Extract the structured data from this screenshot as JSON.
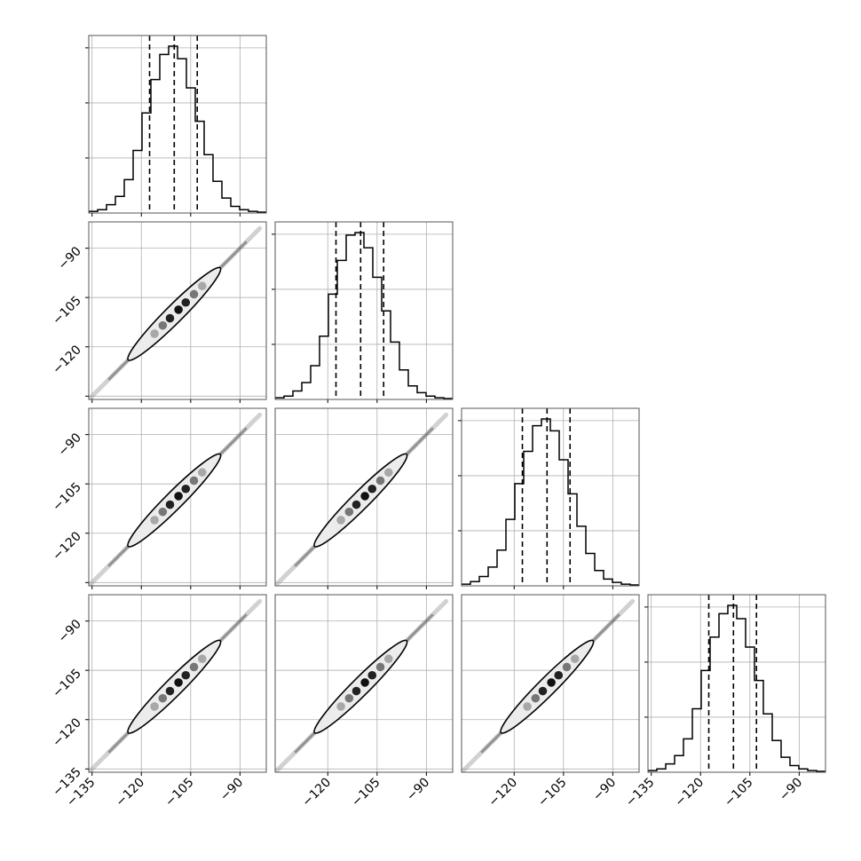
{
  "chart_data": {
    "type": "corner",
    "n_params": 4,
    "grid": true,
    "axes": [
      {
        "ticks": [
          -135,
          -120,
          -105,
          -90
        ],
        "tick_labels": [
          "−135",
          "−120",
          "−105",
          "−90"
        ],
        "lim": [
          -136,
          -82
        ]
      },
      {
        "ticks": [
          -120,
          -105,
          -90
        ],
        "tick_labels": [
          "−120",
          "−105",
          "−90"
        ],
        "lim": [
          -136,
          -82
        ]
      },
      {
        "ticks": [
          -120,
          -105,
          -90
        ],
        "tick_labels": [
          "−120",
          "−105",
          "−90"
        ],
        "lim": [
          -136,
          -82
        ]
      },
      {
        "ticks": [
          -135,
          -120,
          -105,
          -90
        ],
        "tick_labels": [
          "−135",
          "−120",
          "−105",
          "−90"
        ],
        "lim": [
          -136,
          -82
        ]
      }
    ],
    "row_axis_ticks": [
      -90,
      -105,
      -120,
      -135
    ],
    "row_axis_tick_labels": [
      "−90",
      "−105",
      "−120",
      "−135"
    ],
    "quantiles": [
      -117.5,
      -110.0,
      -103.0
    ],
    "histograms": [
      {
        "bin_edges": [
          -136,
          -133.3,
          -130.6,
          -127.9,
          -125.2,
          -122.5,
          -119.8,
          -117.1,
          -114.4,
          -111.7,
          -109,
          -106.3,
          -103.6,
          -100.9,
          -98.2,
          -95.5,
          -92.8,
          -90.1,
          -87.4,
          -84.7,
          -82
        ],
        "counts": [
          2,
          4,
          10,
          20,
          40,
          75,
          120,
          160,
          190,
          200,
          185,
          150,
          110,
          70,
          38,
          18,
          8,
          4,
          2,
          1
        ]
      },
      {
        "bin_edges": [
          -136,
          -133.3,
          -130.6,
          -127.9,
          -125.2,
          -122.5,
          -119.8,
          -117.1,
          -114.4,
          -111.7,
          -109,
          -106.3,
          -103.6,
          -100.9,
          -98.2,
          -95.5,
          -92.8,
          -90.1,
          -87.4,
          -84.7,
          -82
        ],
        "counts": [
          2,
          4,
          10,
          20,
          40,
          75,
          125,
          165,
          195,
          198,
          180,
          145,
          105,
          68,
          35,
          16,
          8,
          4,
          2,
          1
        ]
      },
      {
        "bin_edges": [
          -136,
          -133.3,
          -130.6,
          -127.9,
          -125.2,
          -122.5,
          -119.8,
          -117.1,
          -114.4,
          -111.7,
          -109,
          -106.3,
          -103.6,
          -100.9,
          -98.2,
          -95.5,
          -92.8,
          -90.1,
          -87.4,
          -84.7,
          -82
        ],
        "counts": [
          2,
          5,
          11,
          22,
          42,
          78,
          120,
          158,
          188,
          196,
          182,
          148,
          108,
          70,
          38,
          18,
          8,
          4,
          2,
          1
        ]
      },
      {
        "bin_edges": [
          -136,
          -133.3,
          -130.6,
          -127.9,
          -125.2,
          -122.5,
          -119.8,
          -117.1,
          -114.4,
          -111.7,
          -109,
          -106.3,
          -103.6,
          -100.9,
          -98.2,
          -95.5,
          -92.8,
          -90.1,
          -87.4,
          -84.7,
          -82
        ],
        "counts": [
          2,
          4,
          10,
          20,
          40,
          76,
          122,
          162,
          190,
          200,
          184,
          150,
          110,
          70,
          38,
          18,
          8,
          4,
          2,
          1
        ]
      }
    ],
    "joint": {
      "center": [
        -110,
        -110
      ],
      "ellipse_halfwidth": 14,
      "ellipse_halfthickness": 1.9,
      "blobs": [
        {
          "t": -6.0,
          "gray": "#a8a8a8"
        },
        {
          "t": -3.5,
          "gray": "#777777"
        },
        {
          "t": -1.3,
          "gray": "#222222"
        },
        {
          "t": 1.3,
          "gray": "#111111"
        },
        {
          "t": 3.5,
          "gray": "#222222"
        },
        {
          "t": 6.0,
          "gray": "#777777"
        },
        {
          "t": 8.5,
          "gray": "#a8a8a8"
        }
      ]
    },
    "colors": {
      "line": "#000000",
      "grid": "#b0b0b0",
      "frame": "#555555"
    }
  }
}
